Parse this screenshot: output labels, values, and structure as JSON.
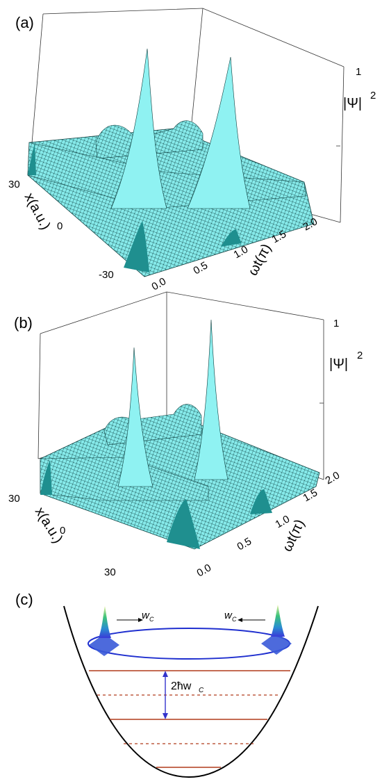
{
  "panels": [
    {
      "label": "(a)",
      "z_label": "|Ψ|",
      "z_sup": "2",
      "z_tick_top": "1",
      "x_label": "x(a.u.)",
      "x_ticks": [
        "30",
        "0",
        "-30"
      ],
      "t_label": "ωt(π)",
      "t_ticks": [
        "0.0",
        "0.5",
        "1.0",
        "1.5",
        "2.0"
      ]
    },
    {
      "label": "(b)",
      "z_label": "|Ψ|",
      "z_sup": "2",
      "z_tick_top": "1",
      "x_label": "x(a.u.)",
      "x_ticks": [
        "30",
        "0",
        "30"
      ],
      "t_label": "ωt(π)",
      "t_ticks": [
        "0.0",
        "0.5",
        "1.0",
        "1.5",
        "2.0"
      ]
    }
  ],
  "panel_c": {
    "label": "(c)",
    "left_label": "w",
    "left_sub": "C",
    "right_label": "w",
    "right_sub": "C",
    "gap_label": "2ħw",
    "gap_sub": "C"
  },
  "colors": {
    "surface": "#7fe6e6",
    "surface_dark": "#1f8f8f",
    "ellipse": "#1f2fcf",
    "level": "#b03a1a",
    "arrow": "#3333cc"
  }
}
